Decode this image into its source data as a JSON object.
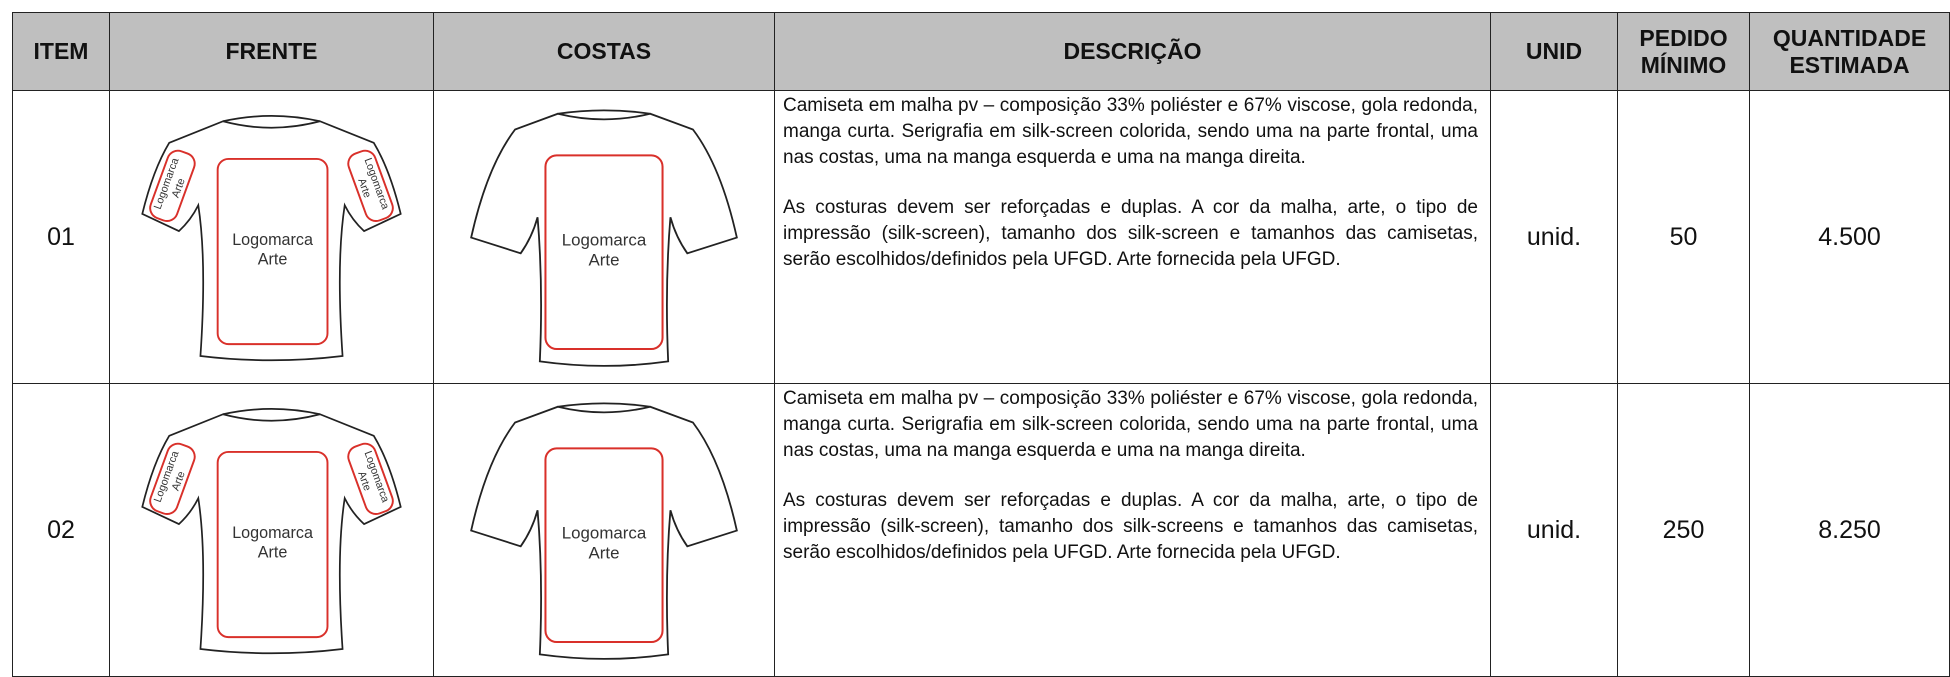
{
  "table": {
    "headers": [
      "ITEM",
      "FRENTE",
      "COSTAS",
      "DESCRIÇÃO",
      "UNID",
      [
        "PEDIDO",
        "MÍNIMO"
      ],
      [
        "QUANTIDADE",
        "ESTIMADA"
      ]
    ],
    "rows": [
      {
        "item": "01",
        "front": {
          "center": [
            "Logomarca",
            "Arte"
          ],
          "left_sleeve": [
            "Logomarca",
            "Arte"
          ],
          "right_sleeve": [
            "Logomarca",
            "Arte"
          ]
        },
        "back": {
          "center": [
            "Logomarca",
            "Arte"
          ]
        },
        "description": [
          "Camiseta em malha pv – composição 33% poliéster e 67% viscose, gola redonda, manga curta. Serigrafia em silk-screen colorida, sendo uma na parte frontal, uma nas costas, uma na manga esquerda e uma na manga direita.",
          "As costuras devem ser reforçadas e duplas. A cor da malha, arte, o tipo de impressão (silk-screen), tamanho dos silk-screen e tamanhos das camisetas, serão escolhidos/definidos pela UFGD. Arte fornecida pela UFGD."
        ],
        "unit": "unid.",
        "min_order": "50",
        "estimated_quantity": "4.500"
      },
      {
        "item": "02",
        "front": {
          "center": [
            "Logomarca",
            "Arte"
          ],
          "left_sleeve": [
            "Logomarca",
            "Arte"
          ],
          "right_sleeve": [
            "Logomarca",
            "Arte"
          ]
        },
        "back": {
          "center": [
            "Logomarca",
            "Arte"
          ]
        },
        "description": [
          "Camiseta em malha pv – composição 33% poliéster e 67% viscose, gola redonda, manga curta. Serigrafia em silk-screen colorida, sendo uma na parte frontal, uma nas costas, uma na manga esquerda e uma na manga direita.",
          "As costuras devem ser reforçadas e duplas. A cor da malha, arte, o tipo de impressão (silk-screen), tamanho dos silk-screens e tamanhos das camisetas, serão escolhidos/definidos pela UFGD. Arte fornecida pela UFGD."
        ],
        "unit": "unid.",
        "min_order": "250",
        "estimated_quantity": "8.250"
      }
    ]
  }
}
